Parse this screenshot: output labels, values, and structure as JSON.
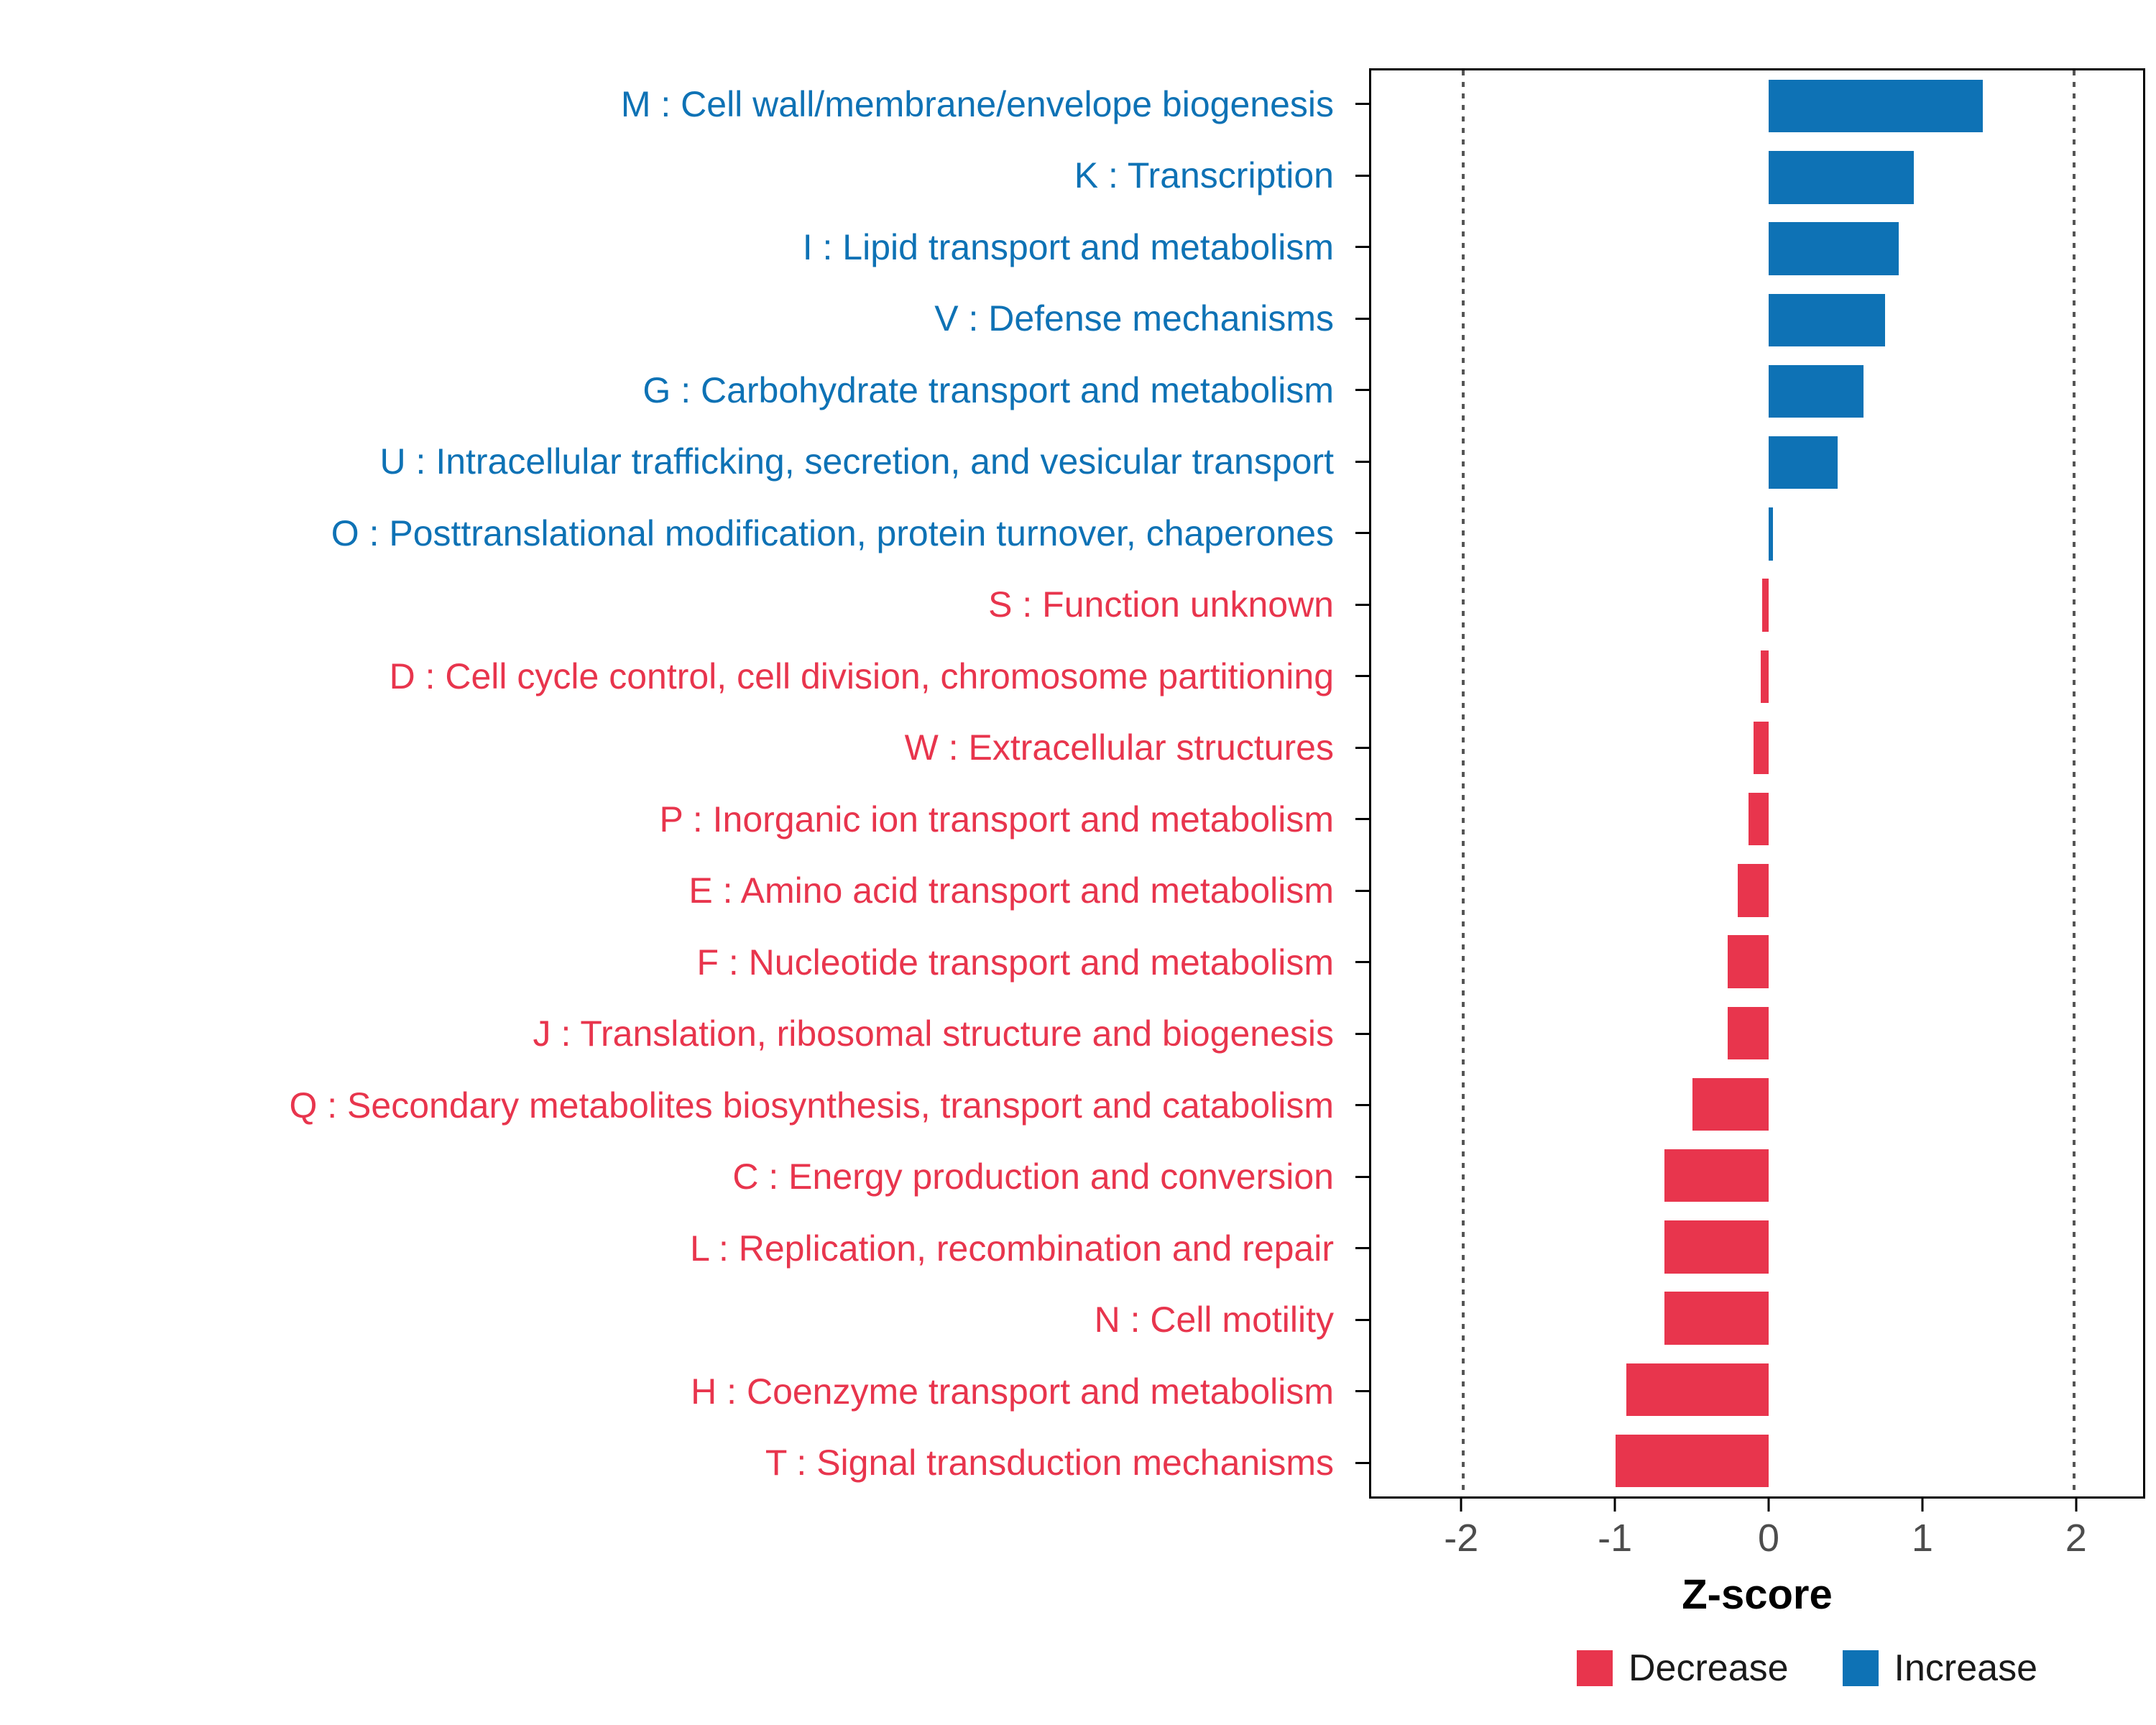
{
  "x_axis": {
    "title": "Z-score",
    "ticks": [
      -2,
      -1,
      0,
      1,
      2
    ],
    "tick_labels": [
      "-2",
      "-1",
      "0",
      "1",
      "2"
    ]
  },
  "legend": {
    "items": [
      {
        "label": "Decrease",
        "color": "#e8354d"
      },
      {
        "label": "Increase",
        "color": "#0e72b5"
      }
    ]
  },
  "chart_data": {
    "type": "bar",
    "orientation": "horizontal",
    "title": "",
    "xlabel": "Z-score",
    "ylabel": "",
    "xlim": [
      -2.6,
      2.45
    ],
    "grid": "dotted vertical lines at -2 and 2 only",
    "gridlines_dotted_at": [
      -2,
      2
    ],
    "legend_position": "bottom-right",
    "series_colors": {
      "Increase": "#0e72b5",
      "Decrease": "#e8354d"
    },
    "categories": [
      "M : Cell wall/membrane/envelope biogenesis",
      "K : Transcription",
      "I : Lipid transport and metabolism",
      "V : Defense mechanisms",
      "G : Carbohydrate transport and metabolism",
      "U : Intracellular trafficking, secretion, and vesicular transport",
      "O : Posttranslational modification, protein turnover, chaperones",
      "S : Function unknown",
      "D : Cell cycle control, cell division, chromosome partitioning",
      "W : Extracellular structures",
      "P : Inorganic ion transport and metabolism",
      "E : Amino acid transport and metabolism",
      "F : Nucleotide transport and metabolism",
      "J : Translation, ribosomal structure and biogenesis",
      "Q : Secondary metabolites biosynthesis, transport and catabolism",
      "C : Energy production and conversion",
      "L : Replication, recombination and repair",
      "N : Cell motility",
      "H : Coenzyme transport and metabolism",
      "T : Signal transduction mechanisms"
    ],
    "values": [
      1.4,
      0.95,
      0.85,
      0.76,
      0.62,
      0.45,
      0.03,
      -0.04,
      -0.05,
      -0.1,
      -0.13,
      -0.2,
      -0.27,
      -0.27,
      -0.5,
      -0.68,
      -0.68,
      -0.68,
      -0.93,
      -1.0
    ],
    "groups": [
      "Increase",
      "Increase",
      "Increase",
      "Increase",
      "Increase",
      "Increase",
      "Increase",
      "Decrease",
      "Decrease",
      "Decrease",
      "Decrease",
      "Decrease",
      "Decrease",
      "Decrease",
      "Decrease",
      "Decrease",
      "Decrease",
      "Decrease",
      "Decrease",
      "Decrease"
    ]
  }
}
